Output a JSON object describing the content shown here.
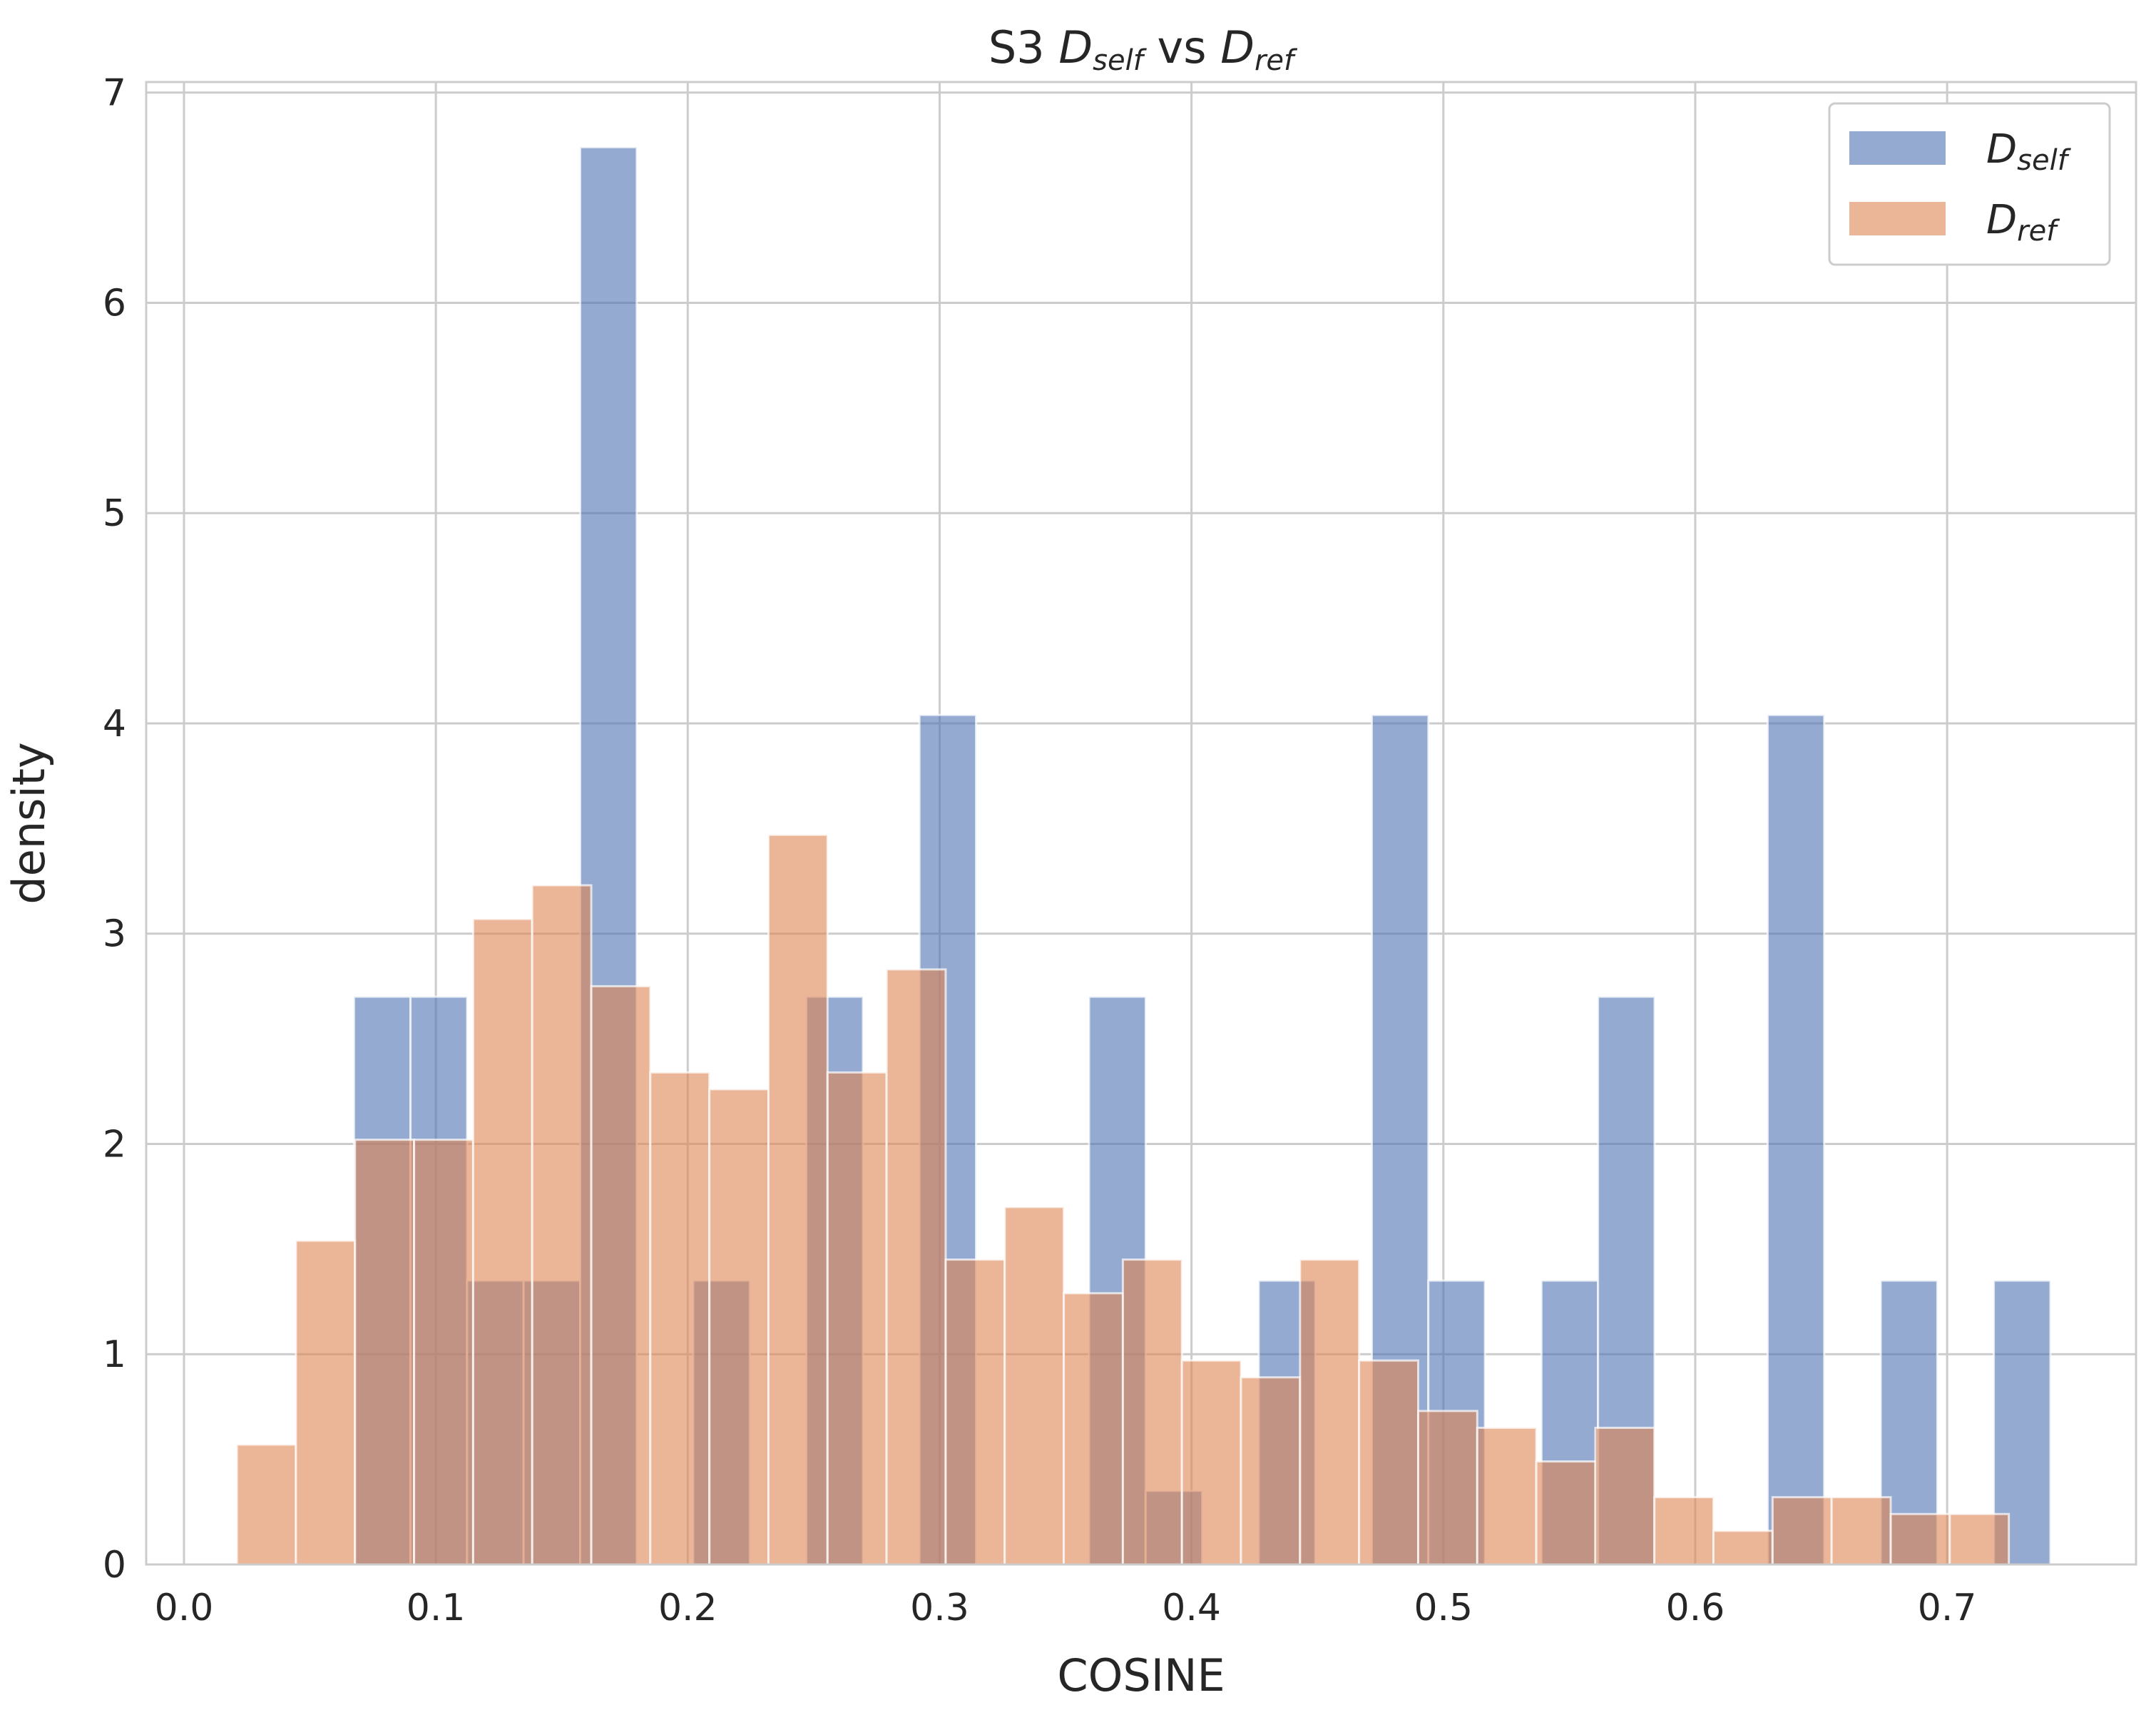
{
  "chart_data": {
    "type": "bar",
    "title": {
      "prefix": "S3 ",
      "var1": "D",
      "sub1": "self",
      "middle": " vs ",
      "var2": "D",
      "sub2": "ref"
    },
    "xlabel": "COSINE",
    "ylabel": "density",
    "xlim": [
      -0.015,
      0.775
    ],
    "ylim": [
      0,
      7.05
    ],
    "x_ticks": [
      "0.0",
      "0.1",
      "0.2",
      "0.3",
      "0.4",
      "0.5",
      "0.6",
      "0.7"
    ],
    "y_ticks": [
      "0",
      "1",
      "2",
      "3",
      "4",
      "5",
      "6",
      "7"
    ],
    "grid": true,
    "legend_position": "top-right",
    "series": [
      {
        "name": "D",
        "name_sub": "self",
        "color": "#4c72b0",
        "opacity": 0.6,
        "bin_start": 0.0675,
        "bin_width": 0.02245,
        "values": [
          2.7,
          2.7,
          1.35,
          1.35,
          6.74,
          0,
          1.35,
          0,
          2.7,
          0,
          4.04,
          0,
          0,
          2.7,
          0.35,
          0,
          1.35,
          0,
          4.04,
          1.35,
          0,
          1.35,
          2.7,
          0,
          0,
          4.04,
          0,
          1.35,
          0,
          1.35
        ]
      },
      {
        "name": "D",
        "name_sub": "ref",
        "color": "#dd8452",
        "opacity": 0.6,
        "bin_start": 0.021,
        "bin_width": 0.02345,
        "values": [
          0.57,
          1.54,
          2.02,
          2.02,
          3.07,
          3.23,
          2.75,
          2.34,
          2.26,
          3.47,
          2.34,
          2.83,
          1.45,
          1.7,
          1.29,
          1.45,
          0.97,
          0.89,
          1.45,
          0.97,
          0.73,
          0.65,
          0.49,
          0.65,
          0.32,
          0.16,
          0.32,
          0.32,
          0.24,
          0.24
        ]
      }
    ]
  }
}
